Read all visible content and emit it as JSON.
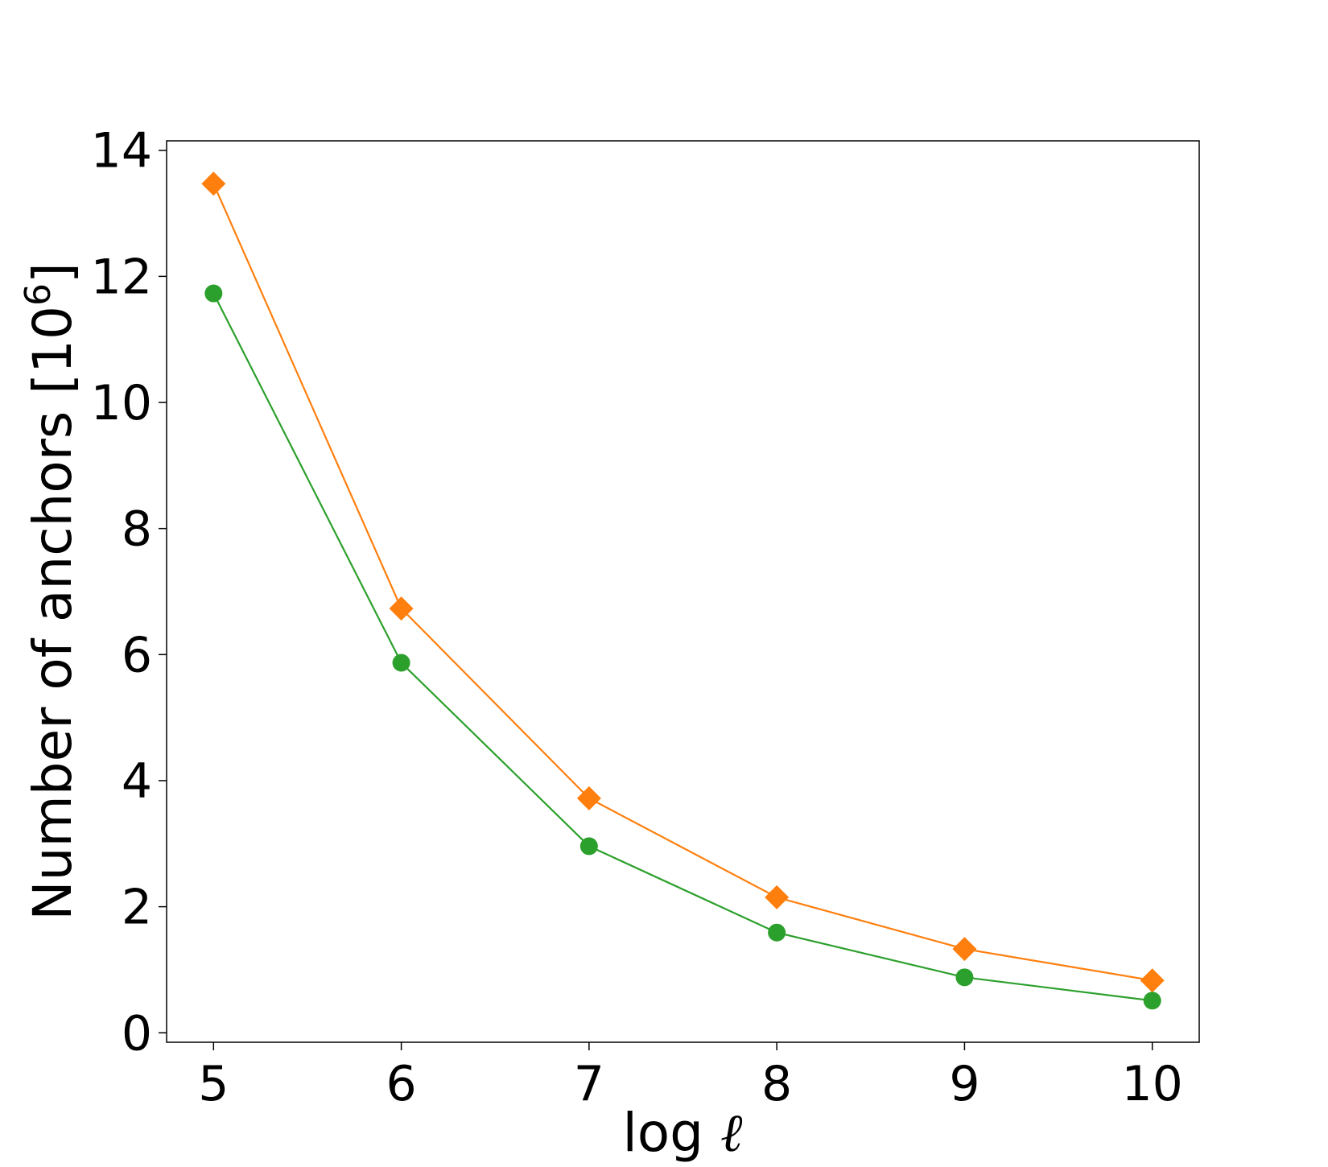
{
  "chart_data": {
    "type": "line",
    "title": "",
    "xlabel": {
      "prefix": "log ",
      "symbol": "ℓ"
    },
    "ylabel": {
      "text": "Number of anchors [10",
      "superscript": "6",
      "suffix": "]"
    },
    "x": [
      5,
      6,
      7,
      8,
      9,
      10
    ],
    "xlim": [
      4.75,
      10.25
    ],
    "ylim": [
      -0.15,
      14.15
    ],
    "xticks": [
      "5",
      "6",
      "7",
      "8",
      "9",
      "10"
    ],
    "yticks": [
      "0",
      "2",
      "4",
      "6",
      "8",
      "10",
      "12",
      "14"
    ],
    "grid": false,
    "series": [
      {
        "color": "#ff7f0e",
        "marker": "diamond",
        "values": [
          13.47,
          6.73,
          3.72,
          2.15,
          1.33,
          0.83
        ]
      },
      {
        "color": "#2ca02c",
        "marker": "circle",
        "values": [
          11.73,
          5.87,
          2.96,
          1.59,
          0.88,
          0.51
        ]
      }
    ]
  }
}
